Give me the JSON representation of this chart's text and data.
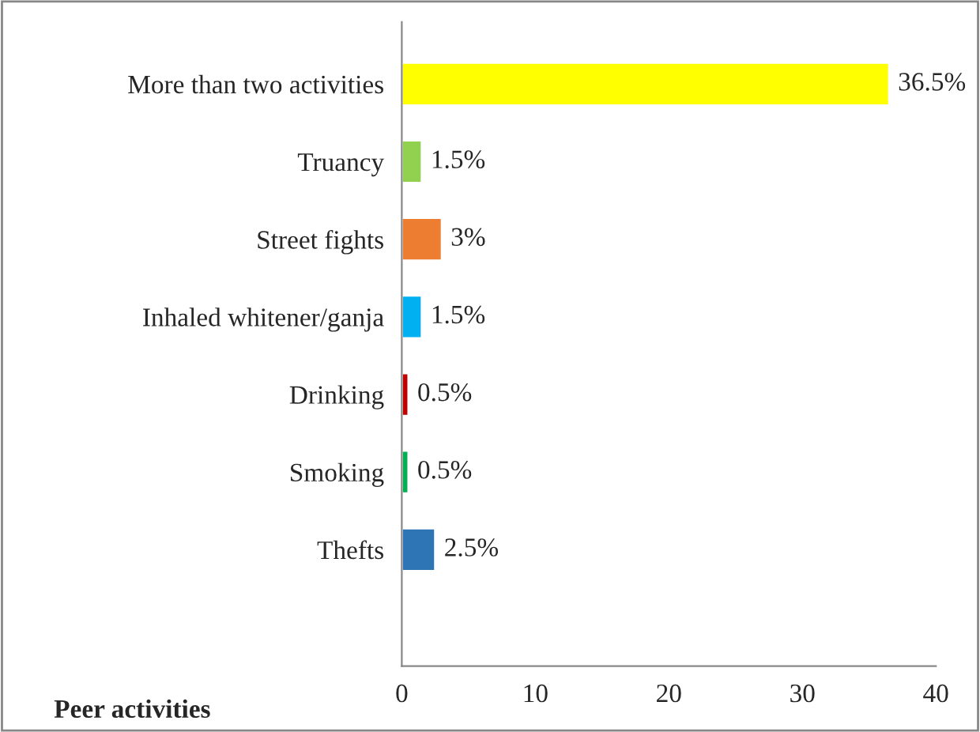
{
  "chart_data": {
    "type": "bar",
    "orientation": "horizontal",
    "title": "Peer activities",
    "categories": [
      "More than two activities",
      "Truancy",
      "Street fights",
      "Inhaled whitener/ganja",
      "Drinking",
      "Smoking",
      "Thefts"
    ],
    "values": [
      36.5,
      1.5,
      3,
      1.5,
      0.5,
      0.5,
      2.5
    ],
    "colors": [
      "#ffff00",
      "#92d050",
      "#ed7d31",
      "#00b0f0",
      "#c00000",
      "#00b050",
      "#2e75b6"
    ],
    "value_labels": [
      "36.5%",
      "1.5%",
      "3%",
      "1.5%",
      "0.5%",
      "0.5%",
      "2.5%"
    ],
    "xlim": [
      0,
      40
    ],
    "xticks": [
      0,
      10,
      20,
      30,
      40
    ],
    "grid": false,
    "legend": false
  }
}
